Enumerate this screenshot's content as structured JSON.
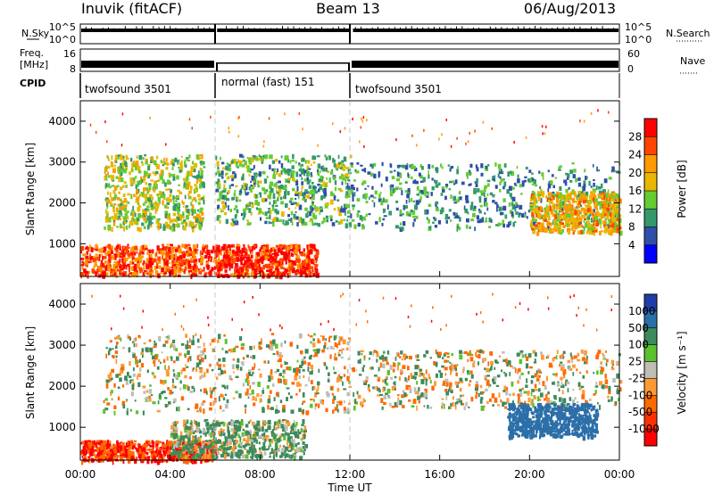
{
  "header": {
    "station": "Inuvik (fitACF)",
    "beam": "Beam 13",
    "date": "06/Aug/2013"
  },
  "top_panels": {
    "nsky_label": "N.Sky",
    "nsky_ticks": [
      "10^5",
      "10^0"
    ],
    "nsearch_label": "N.Search",
    "nsearch_ticks": [
      "10^5",
      "10^0"
    ],
    "freq_label": "Freq.",
    "freq_unit": "[MHz]",
    "freq_ticks": [
      "16",
      "8"
    ],
    "nave_label": "Nave",
    "nave_ticks": [
      "60",
      "0"
    ],
    "cpid_label": "CPID",
    "cpid_segments": [
      {
        "label": "twofsound 3501",
        "start_hr": 0,
        "end_hr": 6.0
      },
      {
        "label": "normal (fast) 151",
        "start_hr": 6.0,
        "end_hr": 12.0
      },
      {
        "label": "twofsound 3501",
        "start_hr": 12.0,
        "end_hr": 24.0
      }
    ]
  },
  "colorbars": {
    "power": {
      "label": "Power [dB]",
      "ticks": [
        "28",
        "24",
        "20",
        "16",
        "12",
        "8",
        "4"
      ],
      "colors": [
        "#ff0000",
        "#ff4500",
        "#ff9a00",
        "#e8b800",
        "#66cc33",
        "#33996b",
        "#2f4fa8",
        "#0000ff"
      ]
    },
    "velocity": {
      "label": "Velocity [m s⁻¹]",
      "ticks": [
        "1000",
        "500",
        "100",
        "25",
        "-25",
        "-100",
        "-500",
        "-1000"
      ],
      "colors": [
        "#1f3fa8",
        "#2c6fa8",
        "#3d8a5c",
        "#5cc12e",
        "#bebeb6",
        "#ff9933",
        "#ff6a00",
        "#ff3300",
        "#ff0000"
      ]
    }
  },
  "chart_data": [
    {
      "type": "heatmap",
      "name": "power",
      "ylabel": "Slant Range [km]",
      "yticks": [
        "4000",
        "3000",
        "2000",
        "1000"
      ],
      "ylim": [
        200,
        4500
      ],
      "xlim": [
        0,
        24
      ],
      "grid": false,
      "bands": [
        {
          "t0": 0.0,
          "t1": 6.0,
          "r0": 250,
          "r1": 1000,
          "value": 26
        },
        {
          "t0": 6.0,
          "t1": 10.5,
          "r0": 250,
          "r1": 1000,
          "value": 28
        },
        {
          "t0": 1.0,
          "t1": 5.5,
          "r0": 1400,
          "r1": 3200,
          "value": 16
        },
        {
          "t0": 6.0,
          "t1": 12.0,
          "r0": 1500,
          "r1": 3200,
          "value": 12
        },
        {
          "t0": 12.0,
          "t1": 24.0,
          "r0": 1400,
          "r1": 3000,
          "value": 10
        },
        {
          "t0": 20.0,
          "t1": 24.0,
          "r0": 1300,
          "r1": 2300,
          "value": 20
        }
      ]
    },
    {
      "type": "heatmap",
      "name": "velocity",
      "xlabel": "Time UT",
      "ylabel": "Slant Range [km]",
      "xticks": [
        "00:00",
        "04:00",
        "08:00",
        "12:00",
        "16:00",
        "20:00",
        "00:00"
      ],
      "yticks": [
        "4000",
        "3000",
        "2000",
        "1000"
      ],
      "ylim": [
        200,
        4500
      ],
      "xlim": [
        0,
        24
      ],
      "grid": false,
      "bands": [
        {
          "t0": 0.0,
          "t1": 6.0,
          "r0": 200,
          "r1": 700,
          "value": -500
        },
        {
          "t0": 4.0,
          "t1": 10.0,
          "r0": 300,
          "r1": 1200,
          "value": 100
        },
        {
          "t0": 1.0,
          "t1": 12.0,
          "r0": 1400,
          "r1": 3300,
          "value": 0
        },
        {
          "t0": 12.0,
          "t1": 24.0,
          "r0": 1500,
          "r1": 2900,
          "value": 0
        },
        {
          "t0": 19.0,
          "t1": 23.0,
          "r0": 800,
          "r1": 1600,
          "value": 500
        }
      ]
    }
  ]
}
